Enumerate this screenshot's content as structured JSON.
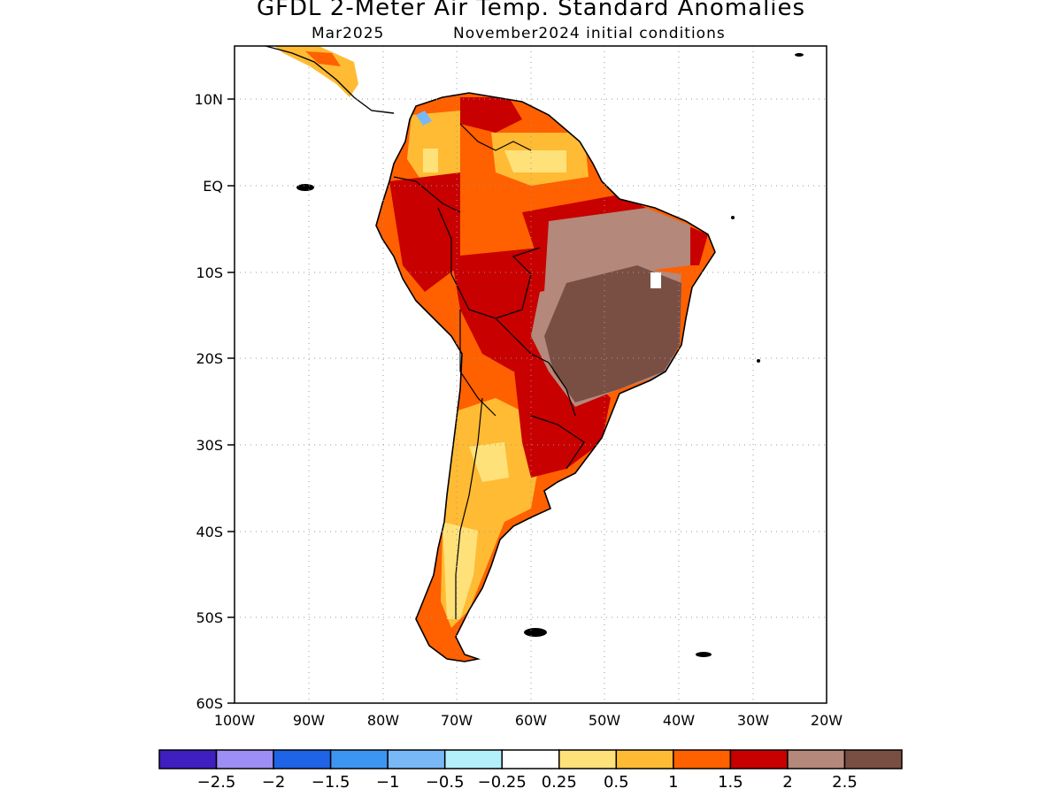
{
  "title": "GFDL 2-Meter Air Temp. Standard Anomalies",
  "subtitle_left": "Mar2025",
  "subtitle_right": "November2024 initial conditions",
  "map": {
    "region": "South America",
    "lat_labels": [
      "10N",
      "EQ",
      "10S",
      "20S",
      "30S",
      "40S",
      "50S",
      "60S"
    ],
    "lon_labels": [
      "100W",
      "90W",
      "80W",
      "70W",
      "60W",
      "50W",
      "40W",
      "30W",
      "20W"
    ],
    "lat_range": [
      -60,
      15
    ],
    "lon_range": [
      -100,
      -20
    ],
    "grid": "dotted"
  },
  "colorbar": {
    "colors": [
      "#3f1fbf",
      "#9d8ef5",
      "#1f63e6",
      "#3d95f2",
      "#78b8f7",
      "#b4f0fa",
      "#ffffff",
      "#ffe17a",
      "#ffbb33",
      "#ff6000",
      "#c80000",
      "#b4887a",
      "#7a4f43"
    ],
    "labels": [
      "-2.5",
      "-2",
      "-1.5",
      "-1",
      "-0.5",
      "-0.25",
      "0.25",
      "0.5",
      "1",
      "1.5",
      "2",
      "2.5"
    ]
  }
}
